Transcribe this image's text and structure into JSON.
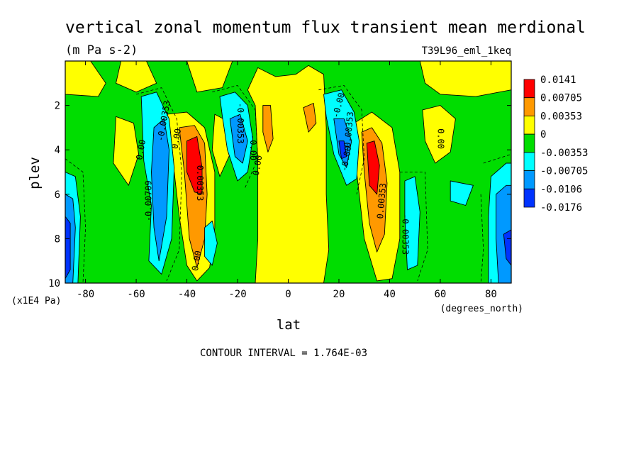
{
  "chart_data": {
    "type": "heatmap",
    "title": "vertical zonal momentum flux transient mean merdional",
    "units": "(m Pa s-2)",
    "run_label": "T39L96_eml_1keq",
    "xlabel": "lat",
    "x_units": "(degrees_north)",
    "ylabel": "plev",
    "y_units": "(x1E4 Pa)",
    "xlim": [
      -88,
      88
    ],
    "ylim": [
      0,
      10
    ],
    "y_inverted": true,
    "x_ticks": [
      -80,
      -60,
      -40,
      -20,
      0,
      20,
      40,
      60,
      80
    ],
    "x_tick_labels": [
      "-80",
      "-60",
      "-40",
      "-20",
      "0",
      "20",
      "40",
      "60",
      "80"
    ],
    "y_ticks": [
      2,
      4,
      6,
      8,
      10
    ],
    "y_tick_labels": [
      "2",
      "4",
      "6",
      "8",
      "10"
    ],
    "contour_interval": "CONTOUR INTERVAL = 1.764E-03",
    "colorbar": {
      "colors": [
        "#ff0000",
        "#ff9900",
        "#ffff00",
        "#00dd00",
        "#00ffff",
        "#0099ff",
        "#0033ff"
      ],
      "labels": [
        "0.0141",
        "0.00705",
        "0.00353",
        "0",
        "-0.00353",
        "-0.00705",
        "-0.0106",
        "-0.0176"
      ]
    },
    "field_level_colors": {
      "zero_band": "#00dd00",
      "pos1": "#ffff00",
      "pos2": "#ff9900",
      "pos3": "#ff0000",
      "neg1": "#00ffff",
      "neg2": "#0099ff",
      "neg3": "#0033ff"
    },
    "features": [
      {
        "lat": -37,
        "plev": 4.7,
        "value": 0.0141,
        "note": "SH positive maximum"
      },
      {
        "lat": 33,
        "plev": 4.7,
        "value": 0.0141,
        "note": "NH positive maximum"
      },
      {
        "lat": -5,
        "plev": 3.0,
        "value": 0.0035
      },
      {
        "lat": 9,
        "plev": 3.0,
        "value": 0.0035
      },
      {
        "lat": -51,
        "plev": 5.5,
        "value": -0.0071
      },
      {
        "lat": -20,
        "plev": 4.0,
        "value": -0.0071
      },
      {
        "lat": 21,
        "plev": 4.0,
        "value": -0.0106
      },
      {
        "lat": 48,
        "plev": 6.5,
        "value": -0.005
      },
      {
        "lat": -87,
        "plev": 8.0,
        "value": -0.012
      },
      {
        "lat": 86,
        "plev": 8.0,
        "value": -0.0106
      }
    ],
    "contour_labels": [
      {
        "text": "0.00",
        "lat": -58,
        "plev": 4.0,
        "rotate": -80
      },
      {
        "text": "-0.00353",
        "lat": -49,
        "plev": 2.7,
        "rotate": -80
      },
      {
        "text": "-0.00709",
        "lat": -55,
        "plev": 6.3,
        "rotate": -90
      },
      {
        "text": "0.00",
        "lat": -44,
        "plev": 3.5,
        "rotate": -80
      },
      {
        "text": "0.00353",
        "lat": -35,
        "plev": 5.5,
        "rotate": 90
      },
      {
        "text": "0.00",
        "lat": -36,
        "plev": 9.0,
        "rotate": -80
      },
      {
        "text": "-0.00353",
        "lat": -19,
        "plev": 2.8,
        "rotate": 90
      },
      {
        "text": "-0.00",
        "lat": -14,
        "plev": 3.9,
        "rotate": 90
      },
      {
        "text": "0.00",
        "lat": -12,
        "plev": 4.7,
        "rotate": -80
      },
      {
        "text": "-0.00",
        "lat": 20,
        "plev": 2.0,
        "rotate": -75
      },
      {
        "text": "-0.00353",
        "lat": 24,
        "plev": 3.2,
        "rotate": -85
      },
      {
        "text": "-0.00",
        "lat": 23,
        "plev": 4.4,
        "rotate": -80
      },
      {
        "text": "0.00353",
        "lat": 37,
        "plev": 6.3,
        "rotate": -85
      },
      {
        "text": "-0.00353",
        "lat": 46,
        "plev": 7.8,
        "rotate": 90
      },
      {
        "text": "0.00",
        "lat": 60,
        "plev": 3.5,
        "rotate": 90
      }
    ]
  }
}
